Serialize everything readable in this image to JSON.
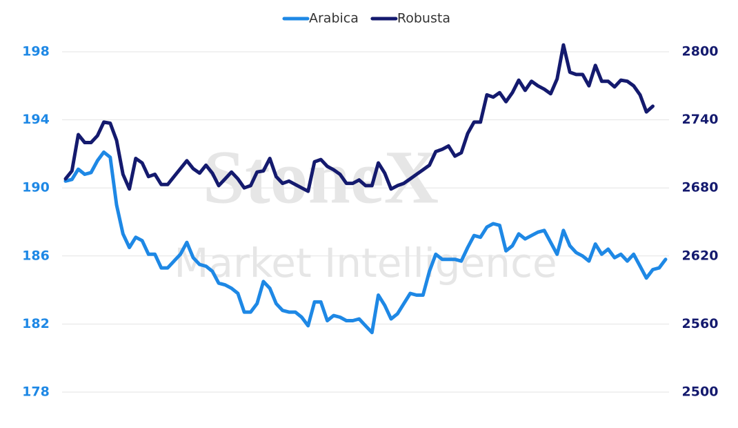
{
  "chart_data": {
    "type": "line",
    "watermark": {
      "title": "StoneX",
      "subtitle": "Market Intelligence"
    },
    "ylim": [
      178,
      198
    ],
    "yticks": [
      178,
      182,
      186,
      190,
      194,
      198
    ],
    "y2lim": [
      2500,
      2800
    ],
    "y2ticks": [
      2500,
      2560,
      2620,
      2680,
      2740,
      2800
    ],
    "grid": true,
    "legend": "top",
    "series": [
      {
        "name": "Arabica",
        "color": "#1e88e5",
        "values": [
          190.4,
          190.5,
          191.1,
          190.8,
          190.9,
          191.6,
          192.1,
          191.8,
          189,
          187.3,
          186.5,
          187.1,
          186.9,
          186.1,
          186.1,
          185.3,
          185.3,
          185.7,
          186.1,
          186.8,
          185.9,
          185.5,
          185.4,
          185.1,
          184.4,
          184.3,
          184.1,
          183.8,
          182.7,
          182.7,
          183.2,
          184.5,
          184.1,
          183.2,
          182.8,
          182.7,
          182.7,
          182.4,
          181.9,
          183.3,
          183.3,
          182.2,
          182.5,
          182.4,
          182.2,
          182.2,
          182.3,
          181.9,
          181.5,
          183.7,
          183.1,
          182.3,
          182.6,
          183.2,
          183.8,
          183.7,
          183.7,
          185.1,
          186.1,
          185.8,
          185.8,
          185.8,
          185.7,
          186.5,
          187.2,
          187.1,
          187.7,
          187.9,
          187.8,
          186.3,
          186.6,
          187.3,
          187,
          187.2,
          187.4,
          187.5,
          186.8,
          186.1,
          187.5,
          186.6,
          186.2,
          186,
          185.7,
          186.7,
          186.1,
          186.4,
          185.9,
          186.1,
          185.7,
          186.1,
          185.4,
          184.7,
          185.2,
          185.3,
          185.8
        ]
      },
      {
        "name": "Robusta",
        "color": "#141a6e",
        "axis": "y2",
        "values": [
          2688,
          2695,
          2727,
          2720,
          2720,
          2726,
          2738,
          2737,
          2722,
          2692,
          2679,
          2706,
          2702,
          2690,
          2692,
          2683,
          2683,
          2690,
          2697,
          2704,
          2697,
          2693,
          2700,
          2693,
          2682,
          2688,
          2694,
          2688,
          2680,
          2682,
          2694,
          2695,
          2706,
          2690,
          2684,
          2686,
          2683,
          2680,
          2677,
          2703,
          2705,
          2699,
          2696,
          2692,
          2684,
          2684,
          2687,
          2682,
          2682,
          2702,
          2693,
          2679,
          2682,
          2684,
          2688,
          2692,
          2696,
          2700,
          2712,
          2714,
          2717,
          2708,
          2711,
          2728,
          2738,
          2738,
          2762,
          2760,
          2764,
          2756,
          2764,
          2775,
          2766,
          2774,
          2770,
          2767,
          2763,
          2776,
          2806,
          2782,
          2780,
          2780,
          2770,
          2788,
          2774,
          2774,
          2769,
          2775,
          2774,
          2770,
          2762,
          2747,
          2752,
          null,
          null
        ]
      }
    ]
  }
}
